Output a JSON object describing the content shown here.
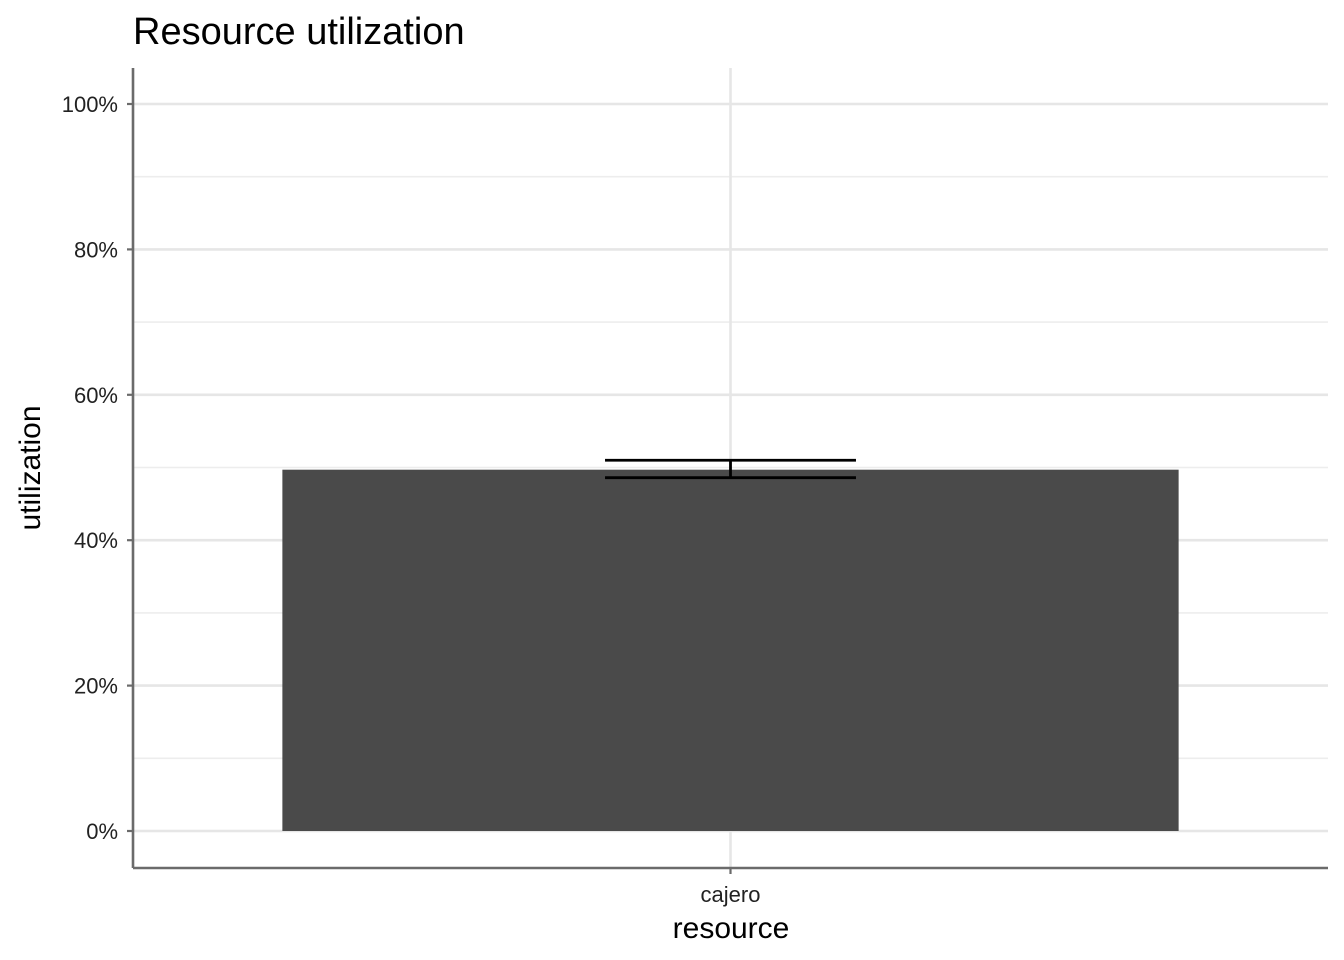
{
  "chart_data": {
    "type": "bar",
    "title": "Resource utilization",
    "xlabel": "resource",
    "ylabel": "utilization",
    "categories": [
      "cajero"
    ],
    "values": [
      0.497
    ],
    "error_bars": [
      {
        "low": 0.486,
        "high": 0.51
      }
    ],
    "ylim": [
      0,
      1.05
    ],
    "y_ticks": [
      0,
      0.2,
      0.4,
      0.6,
      0.8,
      1.0
    ],
    "y_tick_labels": [
      "0%",
      "20%",
      "40%",
      "60%",
      "80%",
      "100%"
    ],
    "y_minor_ticks": [
      0.1,
      0.3,
      0.5,
      0.7,
      0.9
    ],
    "grid": true,
    "legend": "none",
    "bar_color": "#4a4a4a",
    "error_bar_color": "#000000",
    "grid_color": "#e6e6e6",
    "axis_color": "#6b6b6b"
  }
}
